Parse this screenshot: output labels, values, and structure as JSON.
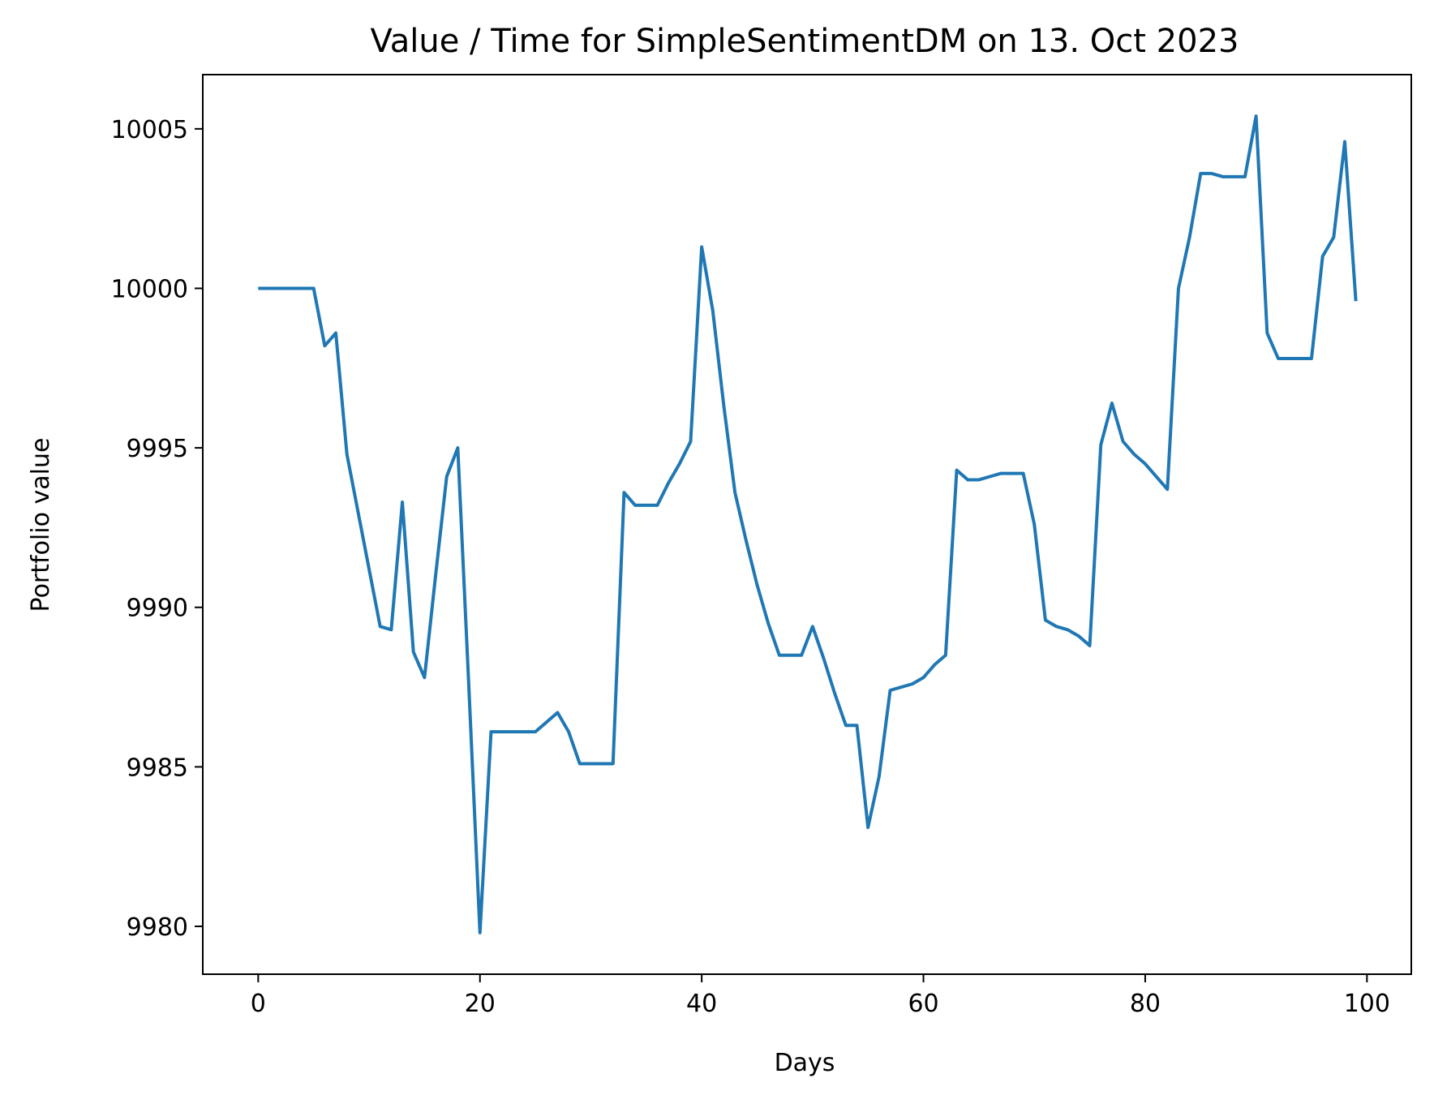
{
  "chart_data": {
    "type": "line",
    "title": "Value / Time for SimpleSentimentDM on 13. Oct 2023",
    "xlabel": "Days",
    "ylabel": "Portfolio value",
    "xlim": [
      -5,
      104
    ],
    "ylim": [
      9978.5,
      10006.7
    ],
    "xticks": [
      0,
      20,
      40,
      60,
      80,
      100
    ],
    "yticks": [
      9980,
      9985,
      9990,
      9995,
      10000,
      10005
    ],
    "grid": false,
    "line_color": "#1f77b4",
    "series": [
      {
        "x": [
          0,
          1,
          2,
          3,
          4,
          5,
          6,
          7,
          8,
          9,
          10,
          11,
          12,
          13,
          14,
          15,
          16,
          17,
          18,
          19,
          20,
          21,
          22,
          23,
          24,
          25,
          26,
          27,
          28,
          29,
          30,
          31,
          32,
          33,
          34,
          35,
          36,
          37,
          38,
          39,
          40,
          41,
          42,
          43,
          44,
          45,
          46,
          47,
          48,
          49,
          50,
          51,
          52,
          53,
          54,
          55,
          56,
          57,
          58,
          59,
          60,
          61,
          62,
          63,
          64,
          65,
          66,
          67,
          68,
          69,
          70,
          71,
          72,
          73,
          74,
          75,
          76,
          77,
          78,
          79,
          80,
          81,
          82,
          83,
          84,
          85,
          86,
          87,
          88,
          89,
          90,
          91,
          92,
          93,
          94,
          95,
          96,
          97,
          98,
          99
        ],
        "values": [
          10000,
          10000,
          10000,
          10000,
          10000,
          10000,
          9998.2,
          9998.6,
          9994.8,
          9993.0,
          9991.2,
          9989.4,
          9989.3,
          9993.3,
          9988.6,
          9987.8,
          9991.0,
          9994.1,
          9995.0,
          9987.5,
          9979.8,
          9986.1,
          9986.1,
          9986.1,
          9986.1,
          9986.1,
          9986.4,
          9986.7,
          9986.1,
          9985.1,
          9985.1,
          9985.1,
          9985.1,
          9993.6,
          9993.2,
          9993.2,
          9993.2,
          9993.9,
          9994.5,
          9995.2,
          10001.3,
          9999.3,
          9996.3,
          9993.6,
          9992.1,
          9990.7,
          9989.5,
          9988.5,
          9988.5,
          9988.5,
          9989.4,
          9988.4,
          9987.3,
          9986.3,
          9986.3,
          9983.1,
          9984.7,
          9987.4,
          9987.5,
          9987.6,
          9987.8,
          9988.2,
          9988.5,
          9994.3,
          9994.0,
          9994.0,
          9994.1,
          9994.2,
          9994.2,
          9994.2,
          9992.6,
          9989.6,
          9989.4,
          9989.3,
          9989.1,
          9988.8,
          9995.1,
          9996.4,
          9995.2,
          9994.8,
          9994.5,
          9994.1,
          9993.7,
          10000.0,
          10001.6,
          10003.6,
          10003.6,
          10003.5,
          10003.5,
          10003.5,
          10005.4,
          9998.6,
          9997.8,
          9997.8,
          9997.8,
          9997.8,
          10001.0,
          10001.6,
          10004.6,
          9999.6
        ]
      }
    ]
  }
}
